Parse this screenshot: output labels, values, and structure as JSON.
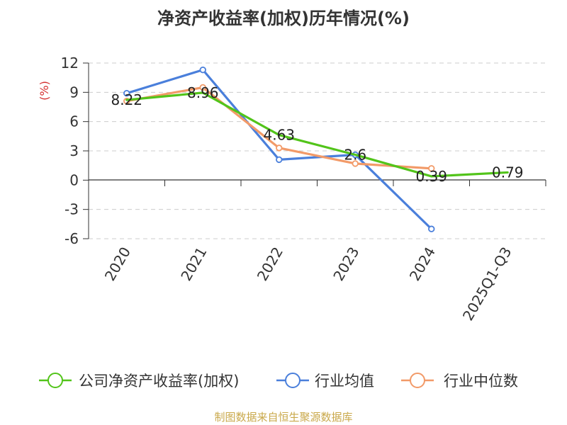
{
  "chart_data": {
    "type": "line",
    "title": "净资产收益率(加权)历年情况(%)",
    "ylabel": "(%)",
    "xlabel": "",
    "categories": [
      "2020",
      "2021",
      "2022",
      "2023",
      "2024",
      "2025Q1-Q3"
    ],
    "ylim": [
      -6,
      12
    ],
    "yticks": [
      12,
      9,
      6,
      3,
      0,
      -3,
      -6
    ],
    "grid": true,
    "legend_position": "bottom",
    "series": [
      {
        "name": "公司净资产收益率(加权)",
        "color": "#52c41a",
        "values": [
          8.22,
          8.96,
          4.63,
          2.6,
          0.39,
          0.79
        ],
        "labels": [
          "8.22",
          "8.96",
          "4.63",
          "2.6",
          "0.39",
          "0.79"
        ]
      },
      {
        "name": "行业均值",
        "color": "#4a7fdb",
        "values": [
          8.9,
          11.3,
          2.1,
          2.6,
          -5.0,
          null
        ]
      },
      {
        "name": "行业中位数",
        "color": "#f29a68",
        "values": [
          8.1,
          9.5,
          3.3,
          1.7,
          1.2,
          null
        ]
      }
    ]
  },
  "source": "制图数据来自恒生聚源数据库"
}
